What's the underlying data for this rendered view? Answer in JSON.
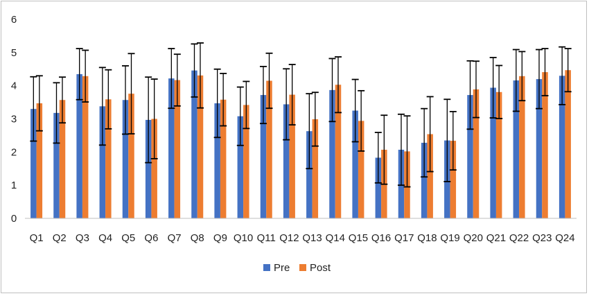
{
  "chart_data": {
    "type": "bar",
    "title": "",
    "xlabel": "",
    "ylabel": "",
    "ylim": [
      0,
      6
    ],
    "yticks": [
      0,
      1,
      2,
      3,
      4,
      5,
      6
    ],
    "grid": false,
    "legend_position": "bottom",
    "error_bars": true,
    "categories": [
      "Q1",
      "Q2",
      "Q3",
      "Q4",
      "Q5",
      "Q6",
      "Q7",
      "Q8",
      "Q9",
      "Q10",
      "Q11",
      "Q12",
      "Q13",
      "Q14",
      "Q15",
      "Q16",
      "Q17",
      "Q18",
      "Q19",
      "Q20",
      "Q21",
      "Q22",
      "Q23",
      "Q24"
    ],
    "series": [
      {
        "name": "Pre",
        "color": "#4472c4",
        "values": [
          3.3,
          3.18,
          4.35,
          3.38,
          3.57,
          2.97,
          4.22,
          4.46,
          3.47,
          3.08,
          3.72,
          3.44,
          2.63,
          3.87,
          3.25,
          1.83,
          2.07,
          2.28,
          2.35,
          3.72,
          3.94,
          4.16,
          4.2,
          4.3
        ],
        "errors": [
          0.97,
          0.91,
          0.77,
          1.17,
          1.03,
          1.29,
          0.9,
          0.8,
          1.03,
          0.88,
          0.86,
          1.07,
          1.13,
          0.95,
          0.94,
          0.76,
          1.07,
          1.03,
          1.24,
          1.03,
          0.91,
          0.93,
          0.89,
          0.87
        ]
      },
      {
        "name": "Post",
        "color": "#ed7d31",
        "values": [
          3.47,
          3.57,
          4.29,
          3.59,
          3.76,
          3.0,
          4.17,
          4.31,
          3.58,
          3.42,
          4.15,
          3.73,
          2.99,
          4.03,
          2.94,
          2.07,
          2.02,
          2.54,
          2.34,
          3.89,
          3.81,
          4.29,
          4.41,
          4.47
        ],
        "errors": [
          0.83,
          0.69,
          0.78,
          0.89,
          1.21,
          1.2,
          0.78,
          0.98,
          0.79,
          0.71,
          0.83,
          0.91,
          0.81,
          0.84,
          0.91,
          1.04,
          1.07,
          1.13,
          0.88,
          0.85,
          0.8,
          0.74,
          0.71,
          0.65
        ]
      }
    ]
  }
}
